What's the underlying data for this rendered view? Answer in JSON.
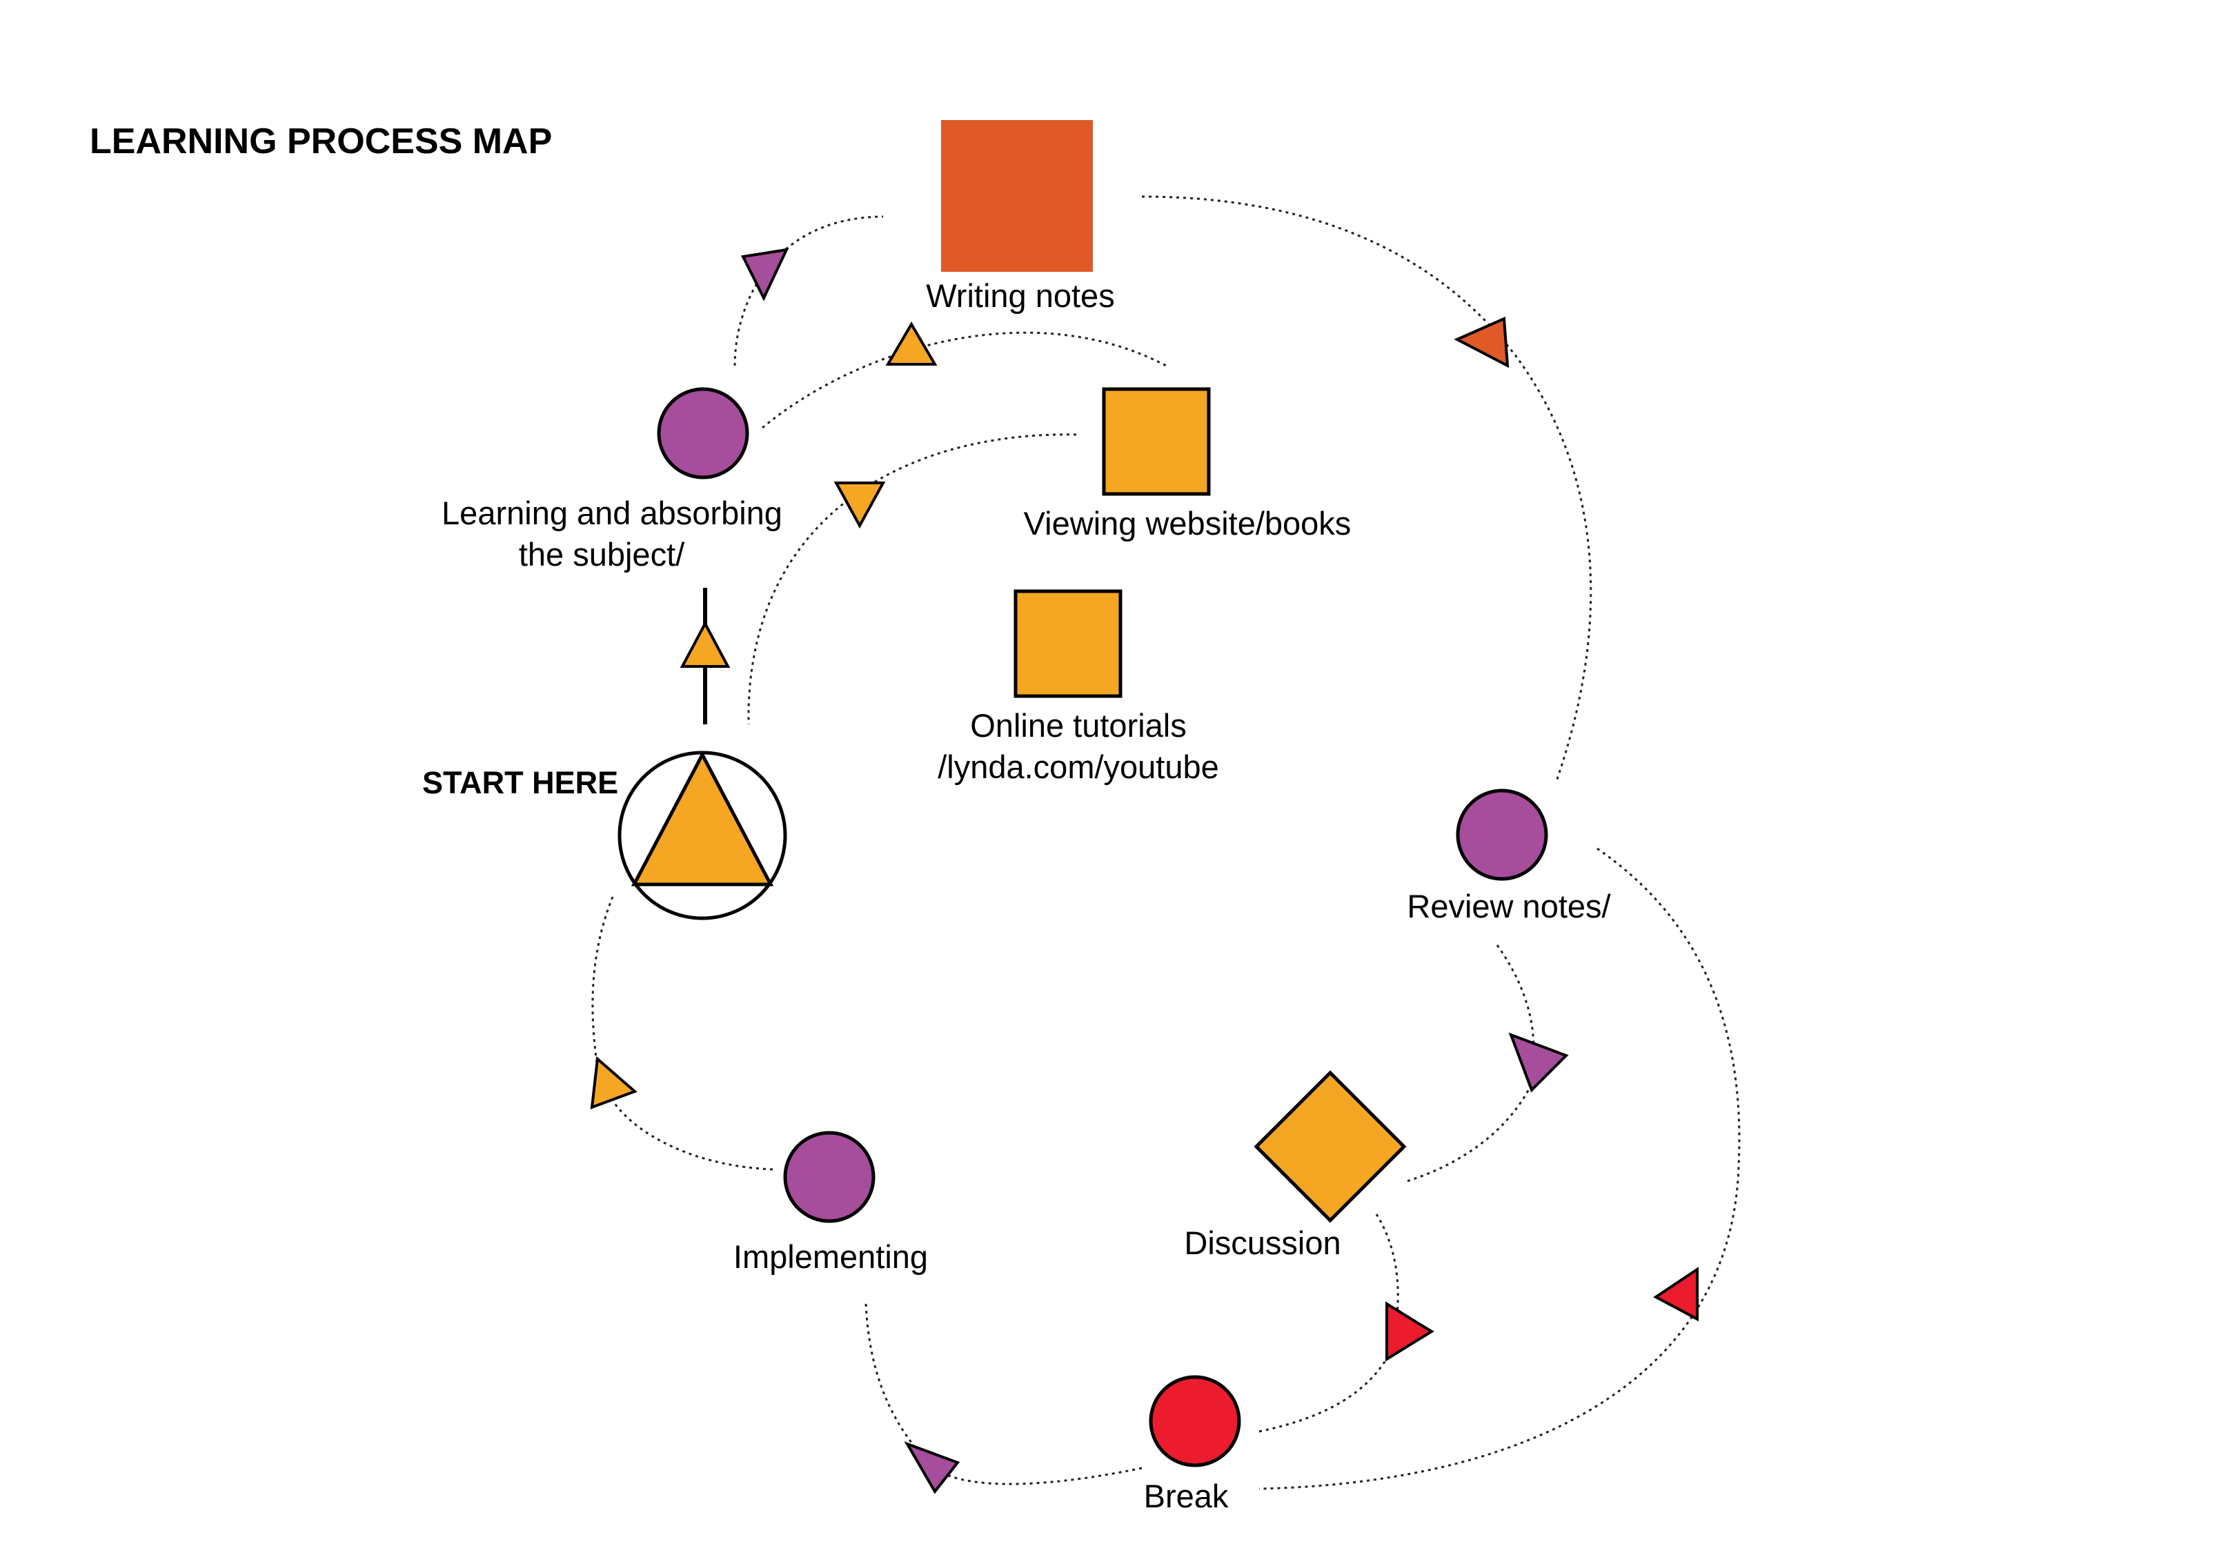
{
  "title": "LEARNING PROCESS MAP",
  "start_label": "START HERE",
  "colors": {
    "orange": "#F5A623",
    "deep_orange": "#E05A27",
    "purple": "#A64D9C",
    "red": "#EC1C2E",
    "outline": "#000000"
  },
  "nodes": {
    "writing_notes": {
      "label": "Writing notes",
      "shape": "square",
      "color": "deep_orange"
    },
    "viewing_websites": {
      "label": "Viewing website/books",
      "shape": "square",
      "color": "orange"
    },
    "online_tutorials": {
      "line1": "Online tutorials",
      "line2": "/lynda.com/youtube",
      "shape": "square",
      "color": "orange"
    },
    "learning": {
      "line1": "Learning and absorbing",
      "line2": "the subject/",
      "shape": "circle",
      "color": "purple"
    },
    "start": {
      "shape": "triangle-in-circle",
      "color": "orange"
    },
    "review_notes": {
      "label": "Review notes/",
      "shape": "circle",
      "color": "purple"
    },
    "discussion": {
      "label": "Discussion",
      "shape": "diamond",
      "color": "orange"
    },
    "implementing": {
      "label": "Implementing",
      "shape": "circle",
      "color": "purple"
    },
    "break": {
      "label": "Break",
      "shape": "circle",
      "color": "red"
    }
  },
  "arrow_icons": [
    {
      "name": "arrow-icon-learning-to-writing",
      "color": "purple"
    },
    {
      "name": "arrow-icon-learning-to-websites",
      "color": "orange"
    },
    {
      "name": "arrow-icon-websites-to-start",
      "color": "orange"
    },
    {
      "name": "arrow-icon-start-to-learning",
      "color": "orange"
    },
    {
      "name": "arrow-icon-writing-to-review",
      "color": "deep_orange"
    },
    {
      "name": "arrow-icon-review-to-discussion",
      "color": "purple"
    },
    {
      "name": "arrow-icon-discussion-to-break",
      "color": "red"
    },
    {
      "name": "arrow-icon-break-to-review",
      "color": "red"
    },
    {
      "name": "arrow-icon-break-to-implementing",
      "color": "purple"
    },
    {
      "name": "arrow-icon-implementing-to-start",
      "color": "orange"
    }
  ]
}
